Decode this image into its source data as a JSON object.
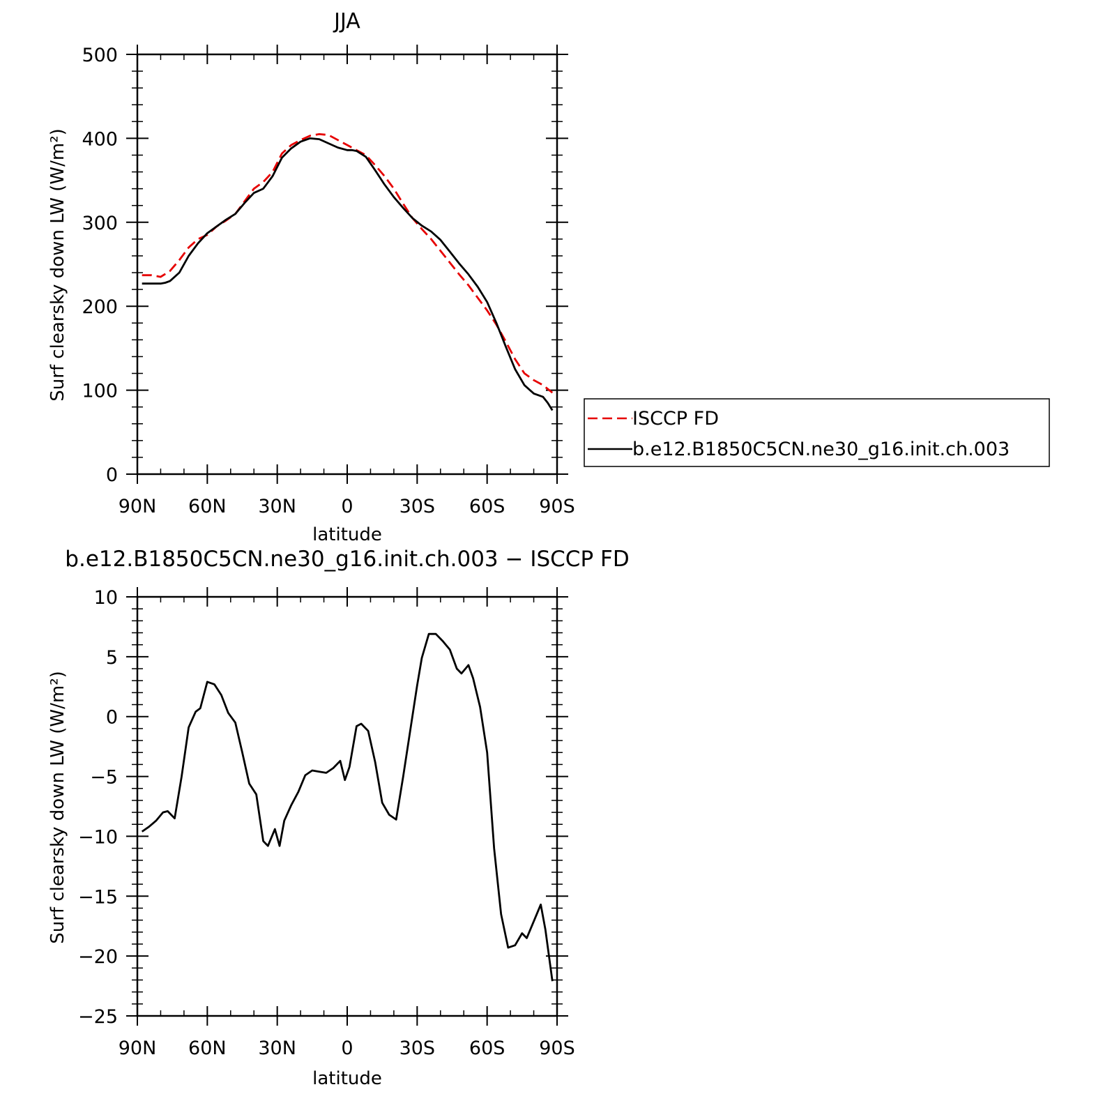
{
  "colors": {
    "model": "#000000",
    "obs": "#e60000",
    "axis": "#000000"
  },
  "chart_data": [
    {
      "type": "line",
      "title": "JJA",
      "xlabel": "latitude",
      "ylabel": "Surf clearsky down LW (W/m²)",
      "xlim": [
        90,
        -90
      ],
      "ylim": [
        0,
        500
      ],
      "xticks": [
        {
          "v": 90,
          "label": "90N"
        },
        {
          "v": 60,
          "label": "60N"
        },
        {
          "v": 30,
          "label": "30N"
        },
        {
          "v": 0,
          "label": "0"
        },
        {
          "v": -30,
          "label": "30S"
        },
        {
          "v": -60,
          "label": "60S"
        },
        {
          "v": -90,
          "label": "90S"
        }
      ],
      "yticks": [
        0,
        100,
        200,
        300,
        400,
        500
      ],
      "legend_position": "right",
      "series": [
        {
          "name": "ISCCP FD",
          "style": "dashed",
          "x": [
            88,
            84,
            80,
            76,
            72,
            68,
            64,
            60,
            56,
            52,
            48,
            44,
            40,
            36,
            32,
            28,
            24,
            20,
            16,
            12,
            8,
            4,
            0,
            -4,
            -8,
            -12,
            -16,
            -20,
            -24,
            -28,
            -32,
            -36,
            -40,
            -44,
            -48,
            -52,
            -56,
            -60,
            -64,
            -68,
            -72,
            -76,
            -80,
            -84,
            -88
          ],
          "y": [
            237,
            237,
            235,
            242,
            255,
            270,
            280,
            285,
            295,
            302,
            310,
            325,
            340,
            348,
            360,
            382,
            392,
            398,
            403,
            405,
            404,
            398,
            392,
            386,
            380,
            368,
            355,
            340,
            322,
            305,
            292,
            280,
            266,
            252,
            238,
            225,
            210,
            195,
            178,
            158,
            137,
            120,
            112,
            106,
            97
          ]
        },
        {
          "name": "b.e12.B1850C5CN.ne30_g16.init.ch.003",
          "style": "solid",
          "x": [
            88,
            84,
            80,
            78,
            76,
            72,
            68,
            64,
            60,
            56,
            52,
            48,
            44,
            40,
            36,
            32,
            28,
            24,
            20,
            16,
            12,
            8,
            4,
            0,
            -2,
            -4,
            -8,
            -12,
            -16,
            -20,
            -24,
            -28,
            -32,
            -36,
            -40,
            -44,
            -48,
            -52,
            -56,
            -60,
            -64,
            -68,
            -72,
            -76,
            -80,
            -84,
            -86,
            -88
          ],
          "y": [
            227,
            227,
            227,
            228,
            230,
            240,
            260,
            275,
            287,
            295,
            303,
            310,
            323,
            335,
            340,
            355,
            377,
            388,
            396,
            400,
            399,
            394,
            389,
            386,
            386,
            385,
            378,
            362,
            345,
            330,
            317,
            305,
            296,
            289,
            279,
            265,
            251,
            238,
            223,
            205,
            180,
            152,
            125,
            106,
            96,
            92,
            85,
            76
          ]
        }
      ]
    },
    {
      "type": "line",
      "title": "b.e12.B1850C5CN.ne30_g16.init.ch.003 − ISCCP FD",
      "xlabel": "latitude",
      "ylabel": "Surf clearsky down LW (W/m²)",
      "xlim": [
        90,
        -90
      ],
      "ylim": [
        -25,
        10
      ],
      "xticks": [
        {
          "v": 90,
          "label": "90N"
        },
        {
          "v": 60,
          "label": "60N"
        },
        {
          "v": 30,
          "label": "30N"
        },
        {
          "v": 0,
          "label": "0"
        },
        {
          "v": -30,
          "label": "30S"
        },
        {
          "v": -60,
          "label": "60S"
        },
        {
          "v": -90,
          "label": "90S"
        }
      ],
      "yticks": [
        -25,
        -20,
        -15,
        -10,
        -5,
        0,
        5,
        10
      ],
      "series": [
        {
          "style": "solid",
          "x": [
            88,
            85,
            82,
            79,
            77,
            74,
            71,
            68,
            65,
            63,
            60,
            57,
            54,
            51,
            48,
            45,
            42,
            39,
            36,
            34,
            31,
            29,
            27,
            24,
            21,
            18,
            15,
            12,
            9,
            6,
            3,
            1,
            -1,
            -4,
            -6,
            -9,
            -12,
            -15,
            -18,
            -21,
            -24,
            -27,
            -30,
            -32,
            -35,
            -38,
            -41,
            -44,
            -47,
            -49,
            -52,
            -54,
            -57,
            -60,
            -63,
            -66,
            -69,
            -72,
            -75,
            -77,
            -80,
            -83,
            -85,
            -88
          ],
          "y": [
            -9.6,
            -9.2,
            -8.7,
            -8.0,
            -7.9,
            -8.5,
            -5.0,
            -0.9,
            0.4,
            0.7,
            2.9,
            2.7,
            1.8,
            0.3,
            -0.5,
            -3.0,
            -5.6,
            -6.5,
            -10.4,
            -10.8,
            -9.4,
            -10.8,
            -8.7,
            -7.4,
            -6.3,
            -4.9,
            -4.5,
            -4.6,
            -4.7,
            -4.3,
            -3.7,
            -5.3,
            -4.2,
            -0.8,
            -0.6,
            -1.2,
            -3.8,
            -7.2,
            -8.2,
            -8.6,
            -5.0,
            -1.2,
            2.6,
            4.9,
            6.9,
            6.9,
            6.3,
            5.6,
            4.0,
            3.6,
            4.3,
            3.2,
            0.8,
            -3.0,
            -11.0,
            -16.5,
            -19.3,
            -19.1,
            -18.1,
            -18.5,
            -17.1,
            -15.7,
            -17.8,
            -22.1
          ]
        }
      ]
    }
  ]
}
